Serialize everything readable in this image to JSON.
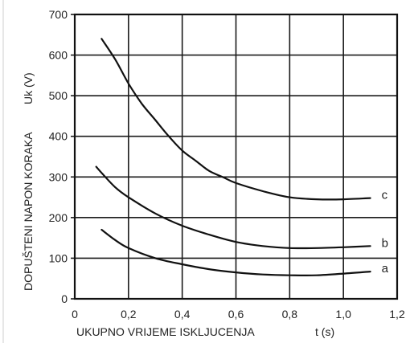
{
  "chart_data": {
    "type": "line",
    "title": "",
    "xlabel": "UKUPNO VRIJEME ISKLJUCENJA",
    "xunit": "t (s)",
    "ylabel": "DOPUŠTENI NAPON KORAKA",
    "yunit": "Uk (V)",
    "xlim": [
      0,
      1.2
    ],
    "ylim": [
      0,
      700
    ],
    "x_ticks": [
      "0",
      "0,2",
      "0,4",
      "0,6",
      "0,8",
      "1,0",
      "1,2"
    ],
    "y_ticks": [
      "0",
      "100",
      "200",
      "300",
      "400",
      "500",
      "600",
      "700"
    ],
    "grid": true,
    "series": [
      {
        "name": "c",
        "x": [
          0.1,
          0.15,
          0.2,
          0.25,
          0.3,
          0.35,
          0.4,
          0.45,
          0.5,
          0.55,
          0.6,
          0.7,
          0.8,
          0.9,
          1.0,
          1.1
        ],
        "y": [
          640,
          590,
          530,
          480,
          440,
          400,
          365,
          340,
          315,
          300,
          285,
          265,
          250,
          245,
          245,
          248
        ]
      },
      {
        "name": "b",
        "x": [
          0.08,
          0.1,
          0.15,
          0.2,
          0.3,
          0.4,
          0.5,
          0.6,
          0.7,
          0.8,
          0.9,
          1.0,
          1.1
        ],
        "y": [
          325,
          310,
          275,
          250,
          210,
          180,
          158,
          140,
          130,
          125,
          125,
          127,
          130
        ]
      },
      {
        "name": "a",
        "x": [
          0.1,
          0.15,
          0.2,
          0.3,
          0.4,
          0.5,
          0.6,
          0.7,
          0.8,
          0.9,
          1.0,
          1.1
        ],
        "y": [
          170,
          145,
          125,
          100,
          85,
          73,
          65,
          60,
          58,
          58,
          62,
          67
        ]
      }
    ]
  }
}
